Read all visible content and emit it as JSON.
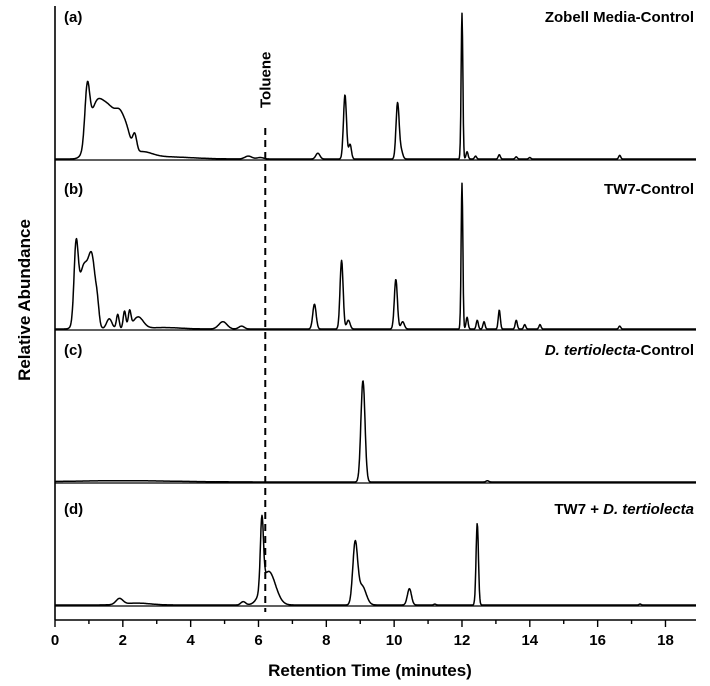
{
  "chart_data": {
    "type": "line",
    "xlabel": "Retention Time (minutes)",
    "ylabel": "Relative Abundance",
    "xlim": [
      0,
      18.9
    ],
    "xticks": [
      0,
      2,
      4,
      6,
      8,
      10,
      12,
      14,
      16,
      18
    ],
    "marker": {
      "label": "Toluene",
      "x": 6.2
    },
    "panels": [
      {
        "label": "(a)",
        "title": "Zobell Media-Control",
        "title_italic": "",
        "title_suffix": "",
        "peaks": [
          {
            "x": 0.95,
            "y": 0.37,
            "w": 0.07
          },
          {
            "x": 1.2,
            "y": 0.33,
            "w": 0.2
          },
          {
            "x": 1.6,
            "y": 0.31,
            "w": 0.22
          },
          {
            "x": 1.95,
            "y": 0.22,
            "w": 0.15
          },
          {
            "x": 2.15,
            "y": 0.08,
            "w": 0.1
          },
          {
            "x": 2.35,
            "y": 0.12,
            "w": 0.06
          },
          {
            "x": 2.55,
            "y": 0.04,
            "w": 0.3
          },
          {
            "x": 3.2,
            "y": 0.015,
            "w": 0.8
          },
          {
            "x": 5.7,
            "y": 0.02,
            "w": 0.1
          },
          {
            "x": 6.05,
            "y": 0.01,
            "w": 0.1
          },
          {
            "x": 7.75,
            "y": 0.04,
            "w": 0.06
          },
          {
            "x": 8.55,
            "y": 0.44,
            "w": 0.045
          },
          {
            "x": 8.7,
            "y": 0.1,
            "w": 0.04
          },
          {
            "x": 10.1,
            "y": 0.38,
            "w": 0.045
          },
          {
            "x": 10.2,
            "y": 0.06,
            "w": 0.05
          },
          {
            "x": 12.0,
            "y": 1.0,
            "w": 0.025
          },
          {
            "x": 12.15,
            "y": 0.05,
            "w": 0.03
          },
          {
            "x": 12.4,
            "y": 0.02,
            "w": 0.03
          },
          {
            "x": 13.1,
            "y": 0.03,
            "w": 0.03
          },
          {
            "x": 13.6,
            "y": 0.015,
            "w": 0.03
          },
          {
            "x": 14.0,
            "y": 0.01,
            "w": 0.03
          },
          {
            "x": 16.65,
            "y": 0.025,
            "w": 0.03
          }
        ]
      },
      {
        "label": "(b)",
        "title": "TW7-Control",
        "title_italic": "",
        "title_suffix": "",
        "peaks": [
          {
            "x": 0.62,
            "y": 0.48,
            "w": 0.06
          },
          {
            "x": 0.85,
            "y": 0.43,
            "w": 0.15
          },
          {
            "x": 1.1,
            "y": 0.4,
            "w": 0.1
          },
          {
            "x": 1.25,
            "y": 0.1,
            "w": 0.05
          },
          {
            "x": 1.6,
            "y": 0.07,
            "w": 0.08
          },
          {
            "x": 1.85,
            "y": 0.1,
            "w": 0.04
          },
          {
            "x": 2.05,
            "y": 0.12,
            "w": 0.04
          },
          {
            "x": 2.2,
            "y": 0.11,
            "w": 0.04
          },
          {
            "x": 2.45,
            "y": 0.08,
            "w": 0.15
          },
          {
            "x": 3.2,
            "y": 0.01,
            "w": 0.5
          },
          {
            "x": 4.95,
            "y": 0.05,
            "w": 0.12
          },
          {
            "x": 5.5,
            "y": 0.02,
            "w": 0.08
          },
          {
            "x": 7.65,
            "y": 0.17,
            "w": 0.05
          },
          {
            "x": 8.45,
            "y": 0.47,
            "w": 0.045
          },
          {
            "x": 8.65,
            "y": 0.06,
            "w": 0.05
          },
          {
            "x": 10.05,
            "y": 0.34,
            "w": 0.045
          },
          {
            "x": 10.25,
            "y": 0.05,
            "w": 0.05
          },
          {
            "x": 12.0,
            "y": 1.0,
            "w": 0.025
          },
          {
            "x": 12.15,
            "y": 0.08,
            "w": 0.03
          },
          {
            "x": 12.45,
            "y": 0.06,
            "w": 0.03
          },
          {
            "x": 12.65,
            "y": 0.05,
            "w": 0.03
          },
          {
            "x": 13.1,
            "y": 0.13,
            "w": 0.03
          },
          {
            "x": 13.6,
            "y": 0.06,
            "w": 0.03
          },
          {
            "x": 13.85,
            "y": 0.03,
            "w": 0.03
          },
          {
            "x": 14.3,
            "y": 0.03,
            "w": 0.03
          },
          {
            "x": 16.65,
            "y": 0.02,
            "w": 0.03
          }
        ]
      },
      {
        "label": "(c)",
        "title": "",
        "title_italic": "D. tertiolecta",
        "title_suffix": "-Control",
        "peaks": [
          {
            "x": 2.0,
            "y": 0.01,
            "w": 1.5
          },
          {
            "x": 9.08,
            "y": 0.78,
            "w": 0.06
          },
          {
            "x": 12.75,
            "y": 0.01,
            "w": 0.04
          }
        ]
      },
      {
        "label": "(d)",
        "title": "TW7 + ",
        "title_italic": "D. tertiolecta",
        "title_suffix": "",
        "peaks": [
          {
            "x": 1.9,
            "y": 0.06,
            "w": 0.1
          },
          {
            "x": 2.4,
            "y": 0.02,
            "w": 0.4
          },
          {
            "x": 5.55,
            "y": 0.035,
            "w": 0.07
          },
          {
            "x": 6.1,
            "y": 0.72,
            "w": 0.045
          },
          {
            "x": 6.3,
            "y": 0.35,
            "w": 0.2
          },
          {
            "x": 8.85,
            "y": 0.62,
            "w": 0.07
          },
          {
            "x": 9.05,
            "y": 0.2,
            "w": 0.12
          },
          {
            "x": 10.45,
            "y": 0.17,
            "w": 0.06
          },
          {
            "x": 11.2,
            "y": 0.01,
            "w": 0.03
          },
          {
            "x": 12.45,
            "y": 0.85,
            "w": 0.035
          },
          {
            "x": 17.25,
            "y": 0.01,
            "w": 0.03
          }
        ]
      }
    ]
  }
}
